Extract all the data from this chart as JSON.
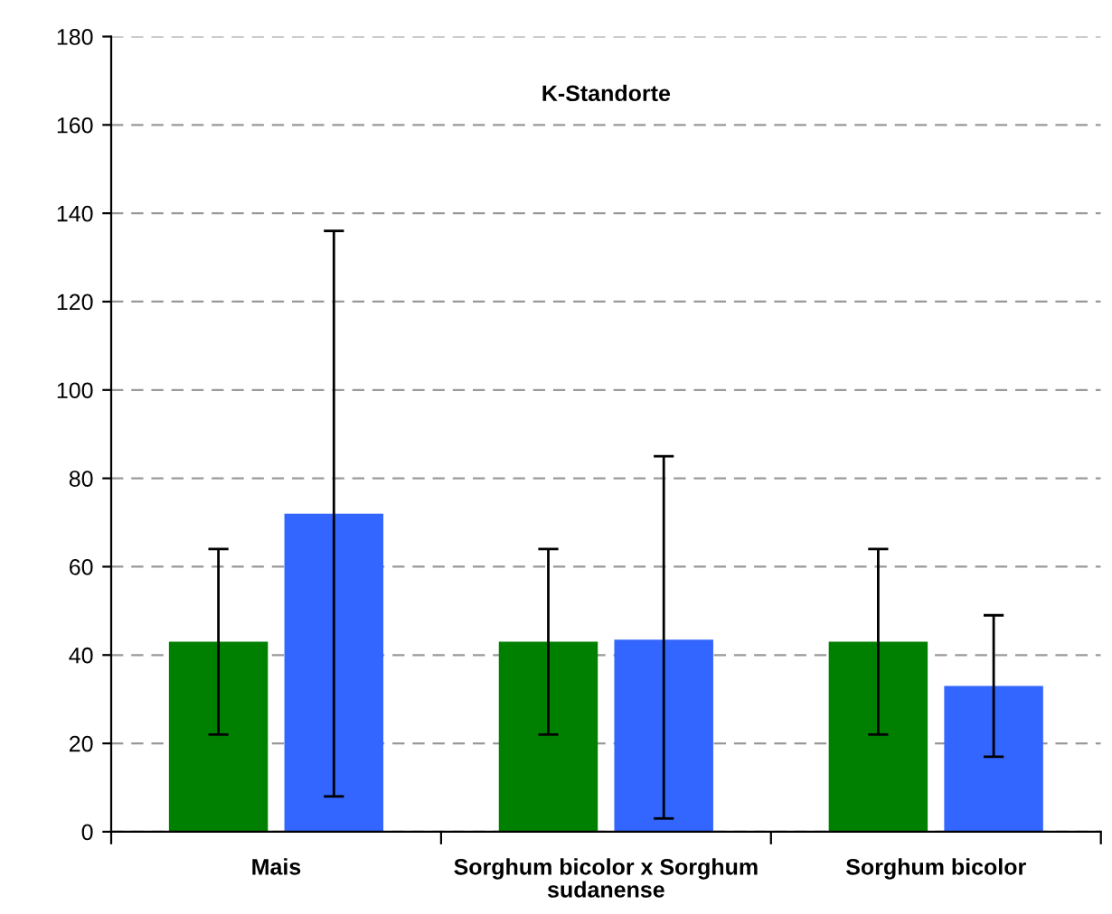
{
  "chart_data": {
    "type": "bar",
    "title": "K-Standorte",
    "categories": [
      "Mais",
      "Sorghum bicolor x Sorghum sudanense",
      "Sorghum bicolor"
    ],
    "series": [
      {
        "color": "#008000",
        "values": [
          43,
          43,
          43
        ],
        "errors": [
          21,
          21,
          21
        ]
      },
      {
        "color": "#3366ff",
        "values": [
          72,
          43.5,
          33
        ],
        "errors": [
          64,
          [
            3,
            85
          ],
          16
        ]
      }
    ],
    "ylim": [
      0,
      180
    ],
    "yticks": [
      0,
      20,
      40,
      60,
      80,
      100,
      120,
      140,
      160,
      180
    ],
    "grid": "y",
    "legend": false
  }
}
